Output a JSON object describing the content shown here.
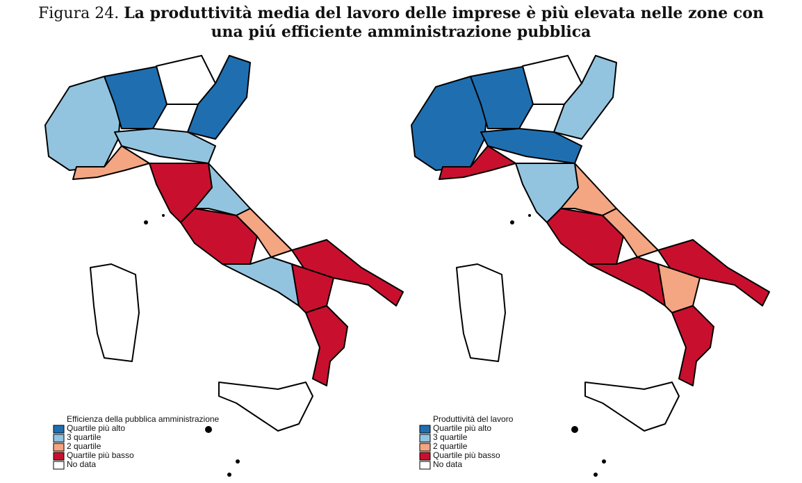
{
  "title": {
    "label": "Figura 24.",
    "text": "La produttività media del lavoro delle imprese è più elevata nelle zone con una piú efficiente amministrazione pubblica"
  },
  "maps": [
    {
      "legend": {
        "title": "Efficienza della pubblica amministrazione",
        "entries": [
          {
            "label": "Quartile più alto",
            "color": "#1f6fb0"
          },
          {
            "label": "3 quartile",
            "color": "#93c4df"
          },
          {
            "label": "2 quartile",
            "color": "#f4a582"
          },
          {
            "label": "Quartile più basso",
            "color": "#c8102e"
          },
          {
            "label": "No data",
            "color": "#ffffff"
          }
        ]
      }
    },
    {
      "legend": {
        "title": "Produttività del lavoro",
        "entries": [
          {
            "label": "Quartile più alto",
            "color": "#1f6fb0"
          },
          {
            "label": "3 quartile",
            "color": "#93c4df"
          },
          {
            "label": "2 quartile",
            "color": "#f4a582"
          },
          {
            "label": "Quartile più basso",
            "color": "#c8102e"
          },
          {
            "label": "No data",
            "color": "#ffffff"
          }
        ]
      }
    }
  ]
}
